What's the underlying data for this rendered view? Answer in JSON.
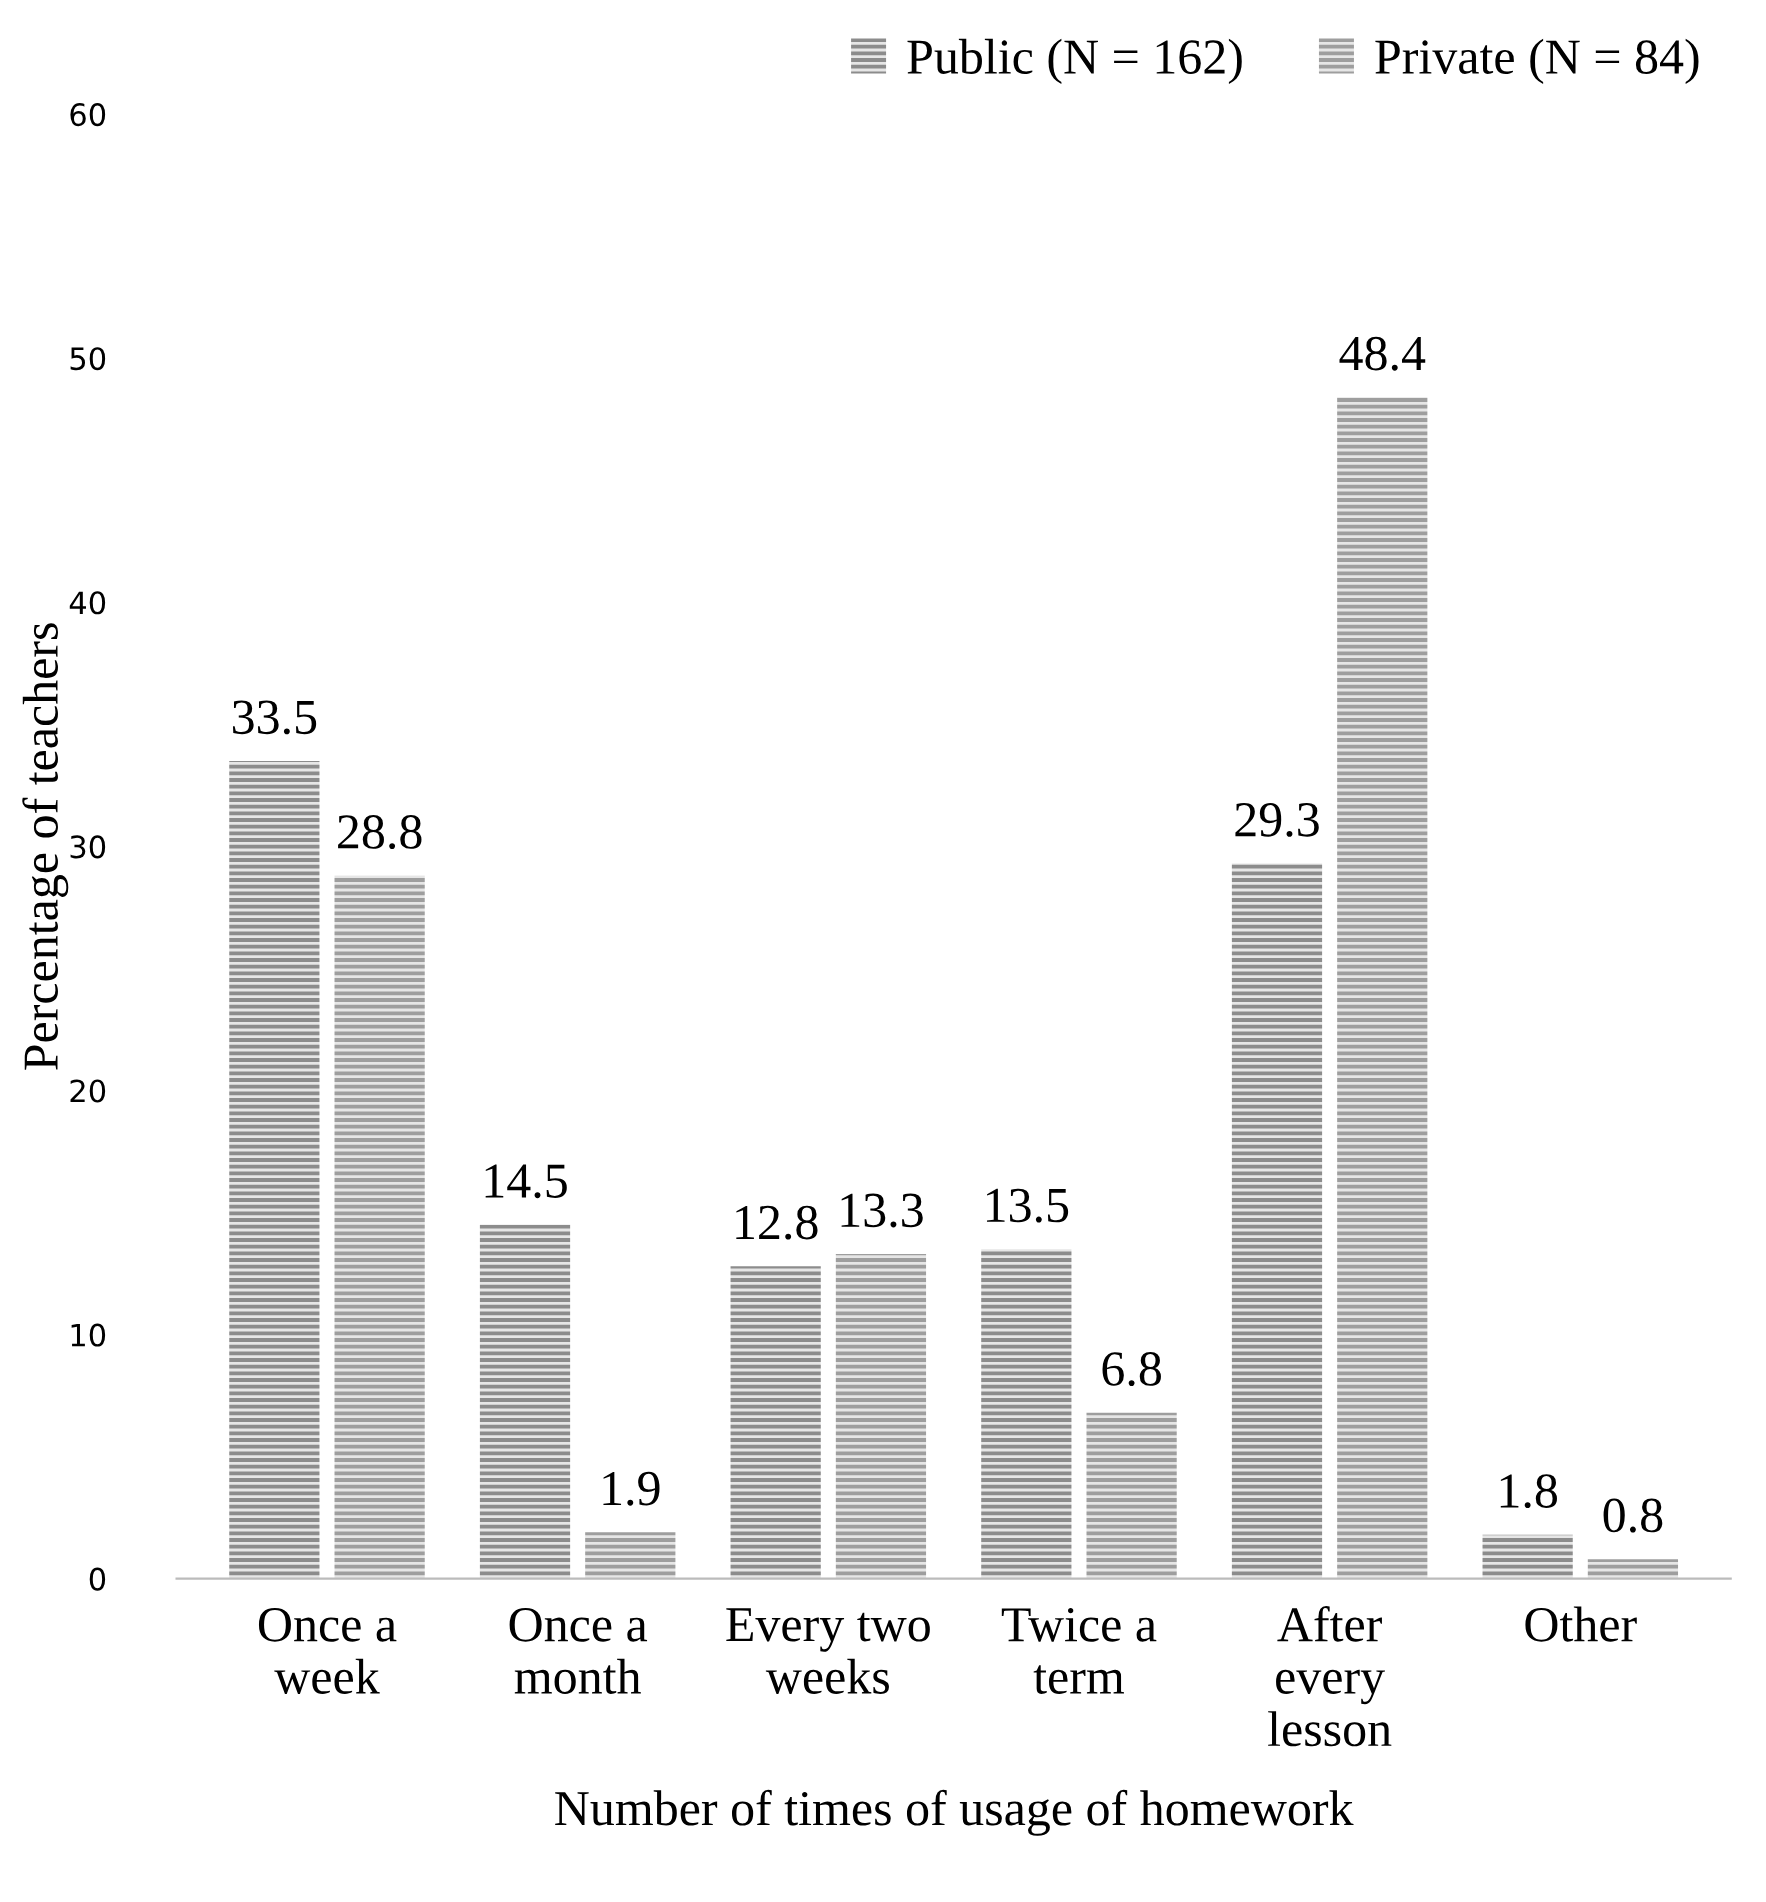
{
  "chart_data": {
    "type": "bar",
    "xlabel": "Number of times of usage of homework",
    "ylabel": "Percentage of teachers",
    "categories": [
      "Once a\nweek",
      "Once a\nmonth",
      "Every two\nweeks",
      "Twice a\nterm",
      "After\nevery\nlesson",
      "Other"
    ],
    "series": [
      {
        "name": "Public (N = 162)",
        "color": "#8c8c8c",
        "values": [
          33.5,
          14.5,
          12.8,
          13.5,
          29.3,
          1.8
        ]
      },
      {
        "name": "Private (N = 84)",
        "color": "#9e9e9e",
        "values": [
          28.8,
          1.9,
          13.3,
          6.8,
          48.4,
          0.8
        ]
      }
    ],
    "ylim": [
      0,
      60
    ],
    "yticks": [
      0,
      10,
      20,
      30,
      40,
      50,
      60
    ],
    "grid": false,
    "legend": "top right",
    "data_labels": true
  }
}
